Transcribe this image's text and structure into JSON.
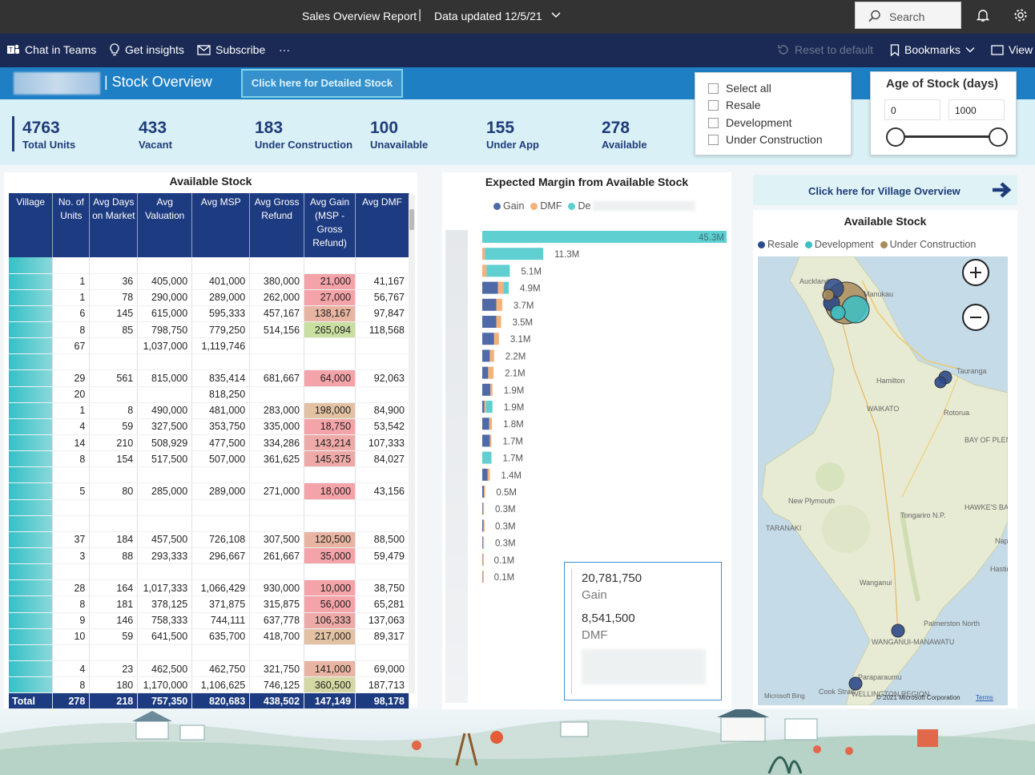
{
  "topbar": {
    "report_title": "Sales Overview Report",
    "separator": "|",
    "data_updated": "Data updated 12/5/21",
    "search_placeholder": "Search"
  },
  "actionbar": {
    "chat_in_teams": "Chat in Teams",
    "get_insights": "Get insights",
    "subscribe": "Subscribe",
    "more": "···",
    "reset_to_default": "Reset to default",
    "bookmarks": "Bookmarks",
    "view": "View"
  },
  "report_header": {
    "page_title": "| Stock Overview",
    "detail_button": "Click here for Detailed Stock"
  },
  "kpis": [
    {
      "value": "4763",
      "label": "Total Units"
    },
    {
      "value": "433",
      "label": "Vacant"
    },
    {
      "value": "183",
      "label": "Under Construction"
    },
    {
      "value": "100",
      "label": "Unavailable"
    },
    {
      "value": "155",
      "label": "Under App"
    },
    {
      "value": "278",
      "label": "Available"
    }
  ],
  "status_slicer": {
    "options": [
      "Select all",
      "Resale",
      "Development",
      "Under Construction"
    ]
  },
  "age_slicer": {
    "title": "Age of Stock (days)",
    "min": "0",
    "max": "1000",
    "low_fraction": 0,
    "high_fraction": 1
  },
  "stock_table": {
    "title": "Available Stock",
    "columns": [
      "Village",
      "No. of Units",
      "Avg Days on Market",
      "Avg Valuation",
      "Avg MSP",
      "Avg Gross Refund",
      "Avg Gain (MSP - Gross Refund)",
      "Avg DMF"
    ],
    "rows": [
      [
        "",
        "",
        "",
        "",
        "",
        "",
        "",
        ""
      ],
      [
        "",
        "1",
        "36",
        "405,000",
        "401,000",
        "380,000",
        "21,000",
        "41,167"
      ],
      [
        "",
        "1",
        "78",
        "290,000",
        "289,000",
        "262,000",
        "27,000",
        "56,767"
      ],
      [
        "",
        "6",
        "145",
        "615,000",
        "595,333",
        "457,167",
        "138,167",
        "97,847"
      ],
      [
        "",
        "8",
        "85",
        "798,750",
        "779,250",
        "514,156",
        "265,094",
        "118,568"
      ],
      [
        "",
        "67",
        "",
        "1,037,000",
        "1,119,746",
        "",
        "",
        ""
      ],
      [
        "",
        "",
        "",
        "",
        "",
        "",
        "",
        ""
      ],
      [
        "",
        "29",
        "561",
        "815,000",
        "835,414",
        "681,667",
        "64,000",
        "92,063"
      ],
      [
        "",
        "20",
        "",
        "",
        "818,250",
        "",
        "",
        ""
      ],
      [
        "",
        "1",
        "8",
        "490,000",
        "481,000",
        "283,000",
        "198,000",
        "84,900"
      ],
      [
        "",
        "4",
        "59",
        "327,500",
        "353,750",
        "335,000",
        "18,750",
        "53,542"
      ],
      [
        "",
        "14",
        "210",
        "508,929",
        "477,500",
        "334,286",
        "143,214",
        "107,333"
      ],
      [
        "",
        "8",
        "154",
        "517,500",
        "507,000",
        "361,625",
        "145,375",
        "84,027"
      ],
      [
        "",
        "",
        "",
        "",
        "",
        "",
        "",
        ""
      ],
      [
        "",
        "5",
        "80",
        "285,000",
        "289,000",
        "271,000",
        "18,000",
        "43,156"
      ],
      [
        "",
        "",
        "",
        "",
        "",
        "",
        "",
        ""
      ],
      [
        "",
        "",
        "",
        "",
        "",
        "",
        "",
        ""
      ],
      [
        "",
        "37",
        "184",
        "457,500",
        "726,108",
        "307,500",
        "120,500",
        "88,500"
      ],
      [
        "",
        "3",
        "88",
        "293,333",
        "296,667",
        "261,667",
        "35,000",
        "59,479"
      ],
      [
        "",
        "",
        "",
        "",
        "",
        "",
        "",
        ""
      ],
      [
        "",
        "28",
        "164",
        "1,017,333",
        "1,066,429",
        "930,000",
        "10,000",
        "38,750"
      ],
      [
        "",
        "8",
        "181",
        "378,125",
        "371,875",
        "315,875",
        "56,000",
        "65,281"
      ],
      [
        "",
        "9",
        "146",
        "758,333",
        "744,111",
        "637,778",
        "106,333",
        "137,063"
      ],
      [
        "",
        "10",
        "59",
        "641,500",
        "635,700",
        "418,700",
        "217,000",
        "89,317"
      ],
      [
        "",
        "",
        "",
        "",
        "",
        "",
        "",
        ""
      ],
      [
        "",
        "4",
        "23",
        "462,500",
        "462,750",
        "321,750",
        "141,000",
        "69,000"
      ],
      [
        "",
        "8",
        "180",
        "1,170,000",
        "1,106,625",
        "746,125",
        "360,500",
        "187,713"
      ]
    ],
    "gain_colors": [
      "",
      "#f4a3a8",
      "#f4a3a8",
      "#e9b5a2",
      "#c9dfa0",
      "",
      "",
      "#f4a3a8",
      "",
      "#e3c2a4",
      "#f4a3a8",
      "#edaaa6",
      "#edaaa6",
      "",
      "#f4a3a8",
      "",
      "",
      "#e9b5a2",
      "#f4a3a8",
      "",
      "#f4a3a8",
      "#f4a3a8",
      "#edaaa6",
      "#e3c2a4",
      "",
      "#e9b5a2",
      "#d4d9a4"
    ],
    "total": [
      "Total",
      "278",
      "218",
      "757,350",
      "820,683",
      "438,502",
      "147,149",
      "98,178"
    ]
  },
  "margin_chart": {
    "title": "Expected Margin from Available Stock",
    "legend": [
      "Gain",
      "DMF",
      "De"
    ],
    "colors": {
      "gain": "#4f6aa6",
      "dmf": "#f2b27a",
      "dev": "#5fcfd2"
    },
    "bars": [
      {
        "label": "45.3M",
        "gain": 0,
        "dmf": 0,
        "dev": 45.3
      },
      {
        "label": "11.3M",
        "gain": 0,
        "dmf": 0.5,
        "dev": 10.8
      },
      {
        "label": "5.1M",
        "gain": 0,
        "dmf": 0.8,
        "dev": 4.3
      },
      {
        "label": "4.9M",
        "gain": 2.9,
        "dmf": 1.0,
        "dev": 1.0
      },
      {
        "label": "3.7M",
        "gain": 2.6,
        "dmf": 1.1,
        "dev": 0
      },
      {
        "label": "3.5M",
        "gain": 2.6,
        "dmf": 0.9,
        "dev": 0
      },
      {
        "label": "3.1M",
        "gain": 2.2,
        "dmf": 0.9,
        "dev": 0
      },
      {
        "label": "2.2M",
        "gain": 1.4,
        "dmf": 0.8,
        "dev": 0
      },
      {
        "label": "2.1M",
        "gain": 1.1,
        "dmf": 1.0,
        "dev": 0
      },
      {
        "label": "1.9M",
        "gain": 1.5,
        "dmf": 0.4,
        "dev": 0
      },
      {
        "label": "1.9M",
        "gain": 0.4,
        "dmf": 0.3,
        "dev": 1.2
      },
      {
        "label": "1.8M",
        "gain": 1.3,
        "dmf": 0.5,
        "dev": 0
      },
      {
        "label": "1.7M",
        "gain": 1.4,
        "dmf": 0.3,
        "dev": 0
      },
      {
        "label": "1.7M",
        "gain": 0,
        "dmf": 0,
        "dev": 1.7
      },
      {
        "label": "1.4M",
        "gain": 1.0,
        "dmf": 0.4,
        "dev": 0
      },
      {
        "label": "0.5M",
        "gain": 0.3,
        "dmf": 0.2,
        "dev": 0
      },
      {
        "label": "0.3M",
        "gain": 0.1,
        "dmf": 0.2,
        "dev": 0
      },
      {
        "label": "0.3M",
        "gain": 0.2,
        "dmf": 0.1,
        "dev": 0
      },
      {
        "label": "0.3M",
        "gain": 0.1,
        "dmf": 0.2,
        "dev": 0
      },
      {
        "label": "0.1M",
        "gain": 0.05,
        "dmf": 0.05,
        "dev": 0
      },
      {
        "label": "0.1M",
        "gain": 0.05,
        "dmf": 0.05,
        "dev": 0
      }
    ],
    "tooltip": {
      "gain_value": "20,781,750",
      "gain_label": "Gain",
      "dmf_value": "8,541,500",
      "dmf_label": "DMF"
    }
  },
  "village_button": {
    "label": "Click here for Village Overview"
  },
  "map": {
    "title": "Available Stock",
    "legend": [
      "Resale",
      "Development",
      "Under Construction"
    ],
    "colors": {
      "resale": "#2d4a8a",
      "development": "#3bbfc4",
      "under_construction": "#a88c5c"
    },
    "labels": [
      "Auckland",
      "Manukau",
      "Tauranga",
      "Hamilton",
      "WAIKATO",
      "Rotorua",
      "BAY OF PLENTY",
      "New Plymouth",
      "Tongariro N.P.",
      "HAWKE'S BAY",
      "TARANAKI",
      "Napi",
      "Hastin",
      "Wanganui",
      "Palmerston North",
      "WANGANUI-MANAWATU",
      "Paraparaumu",
      "WELLINGTON REGION",
      "Cook Strait"
    ],
    "attribution": "Microsoft Bing",
    "copyright": "© 2021 Microsoft Corporation",
    "terms": "Terms"
  }
}
